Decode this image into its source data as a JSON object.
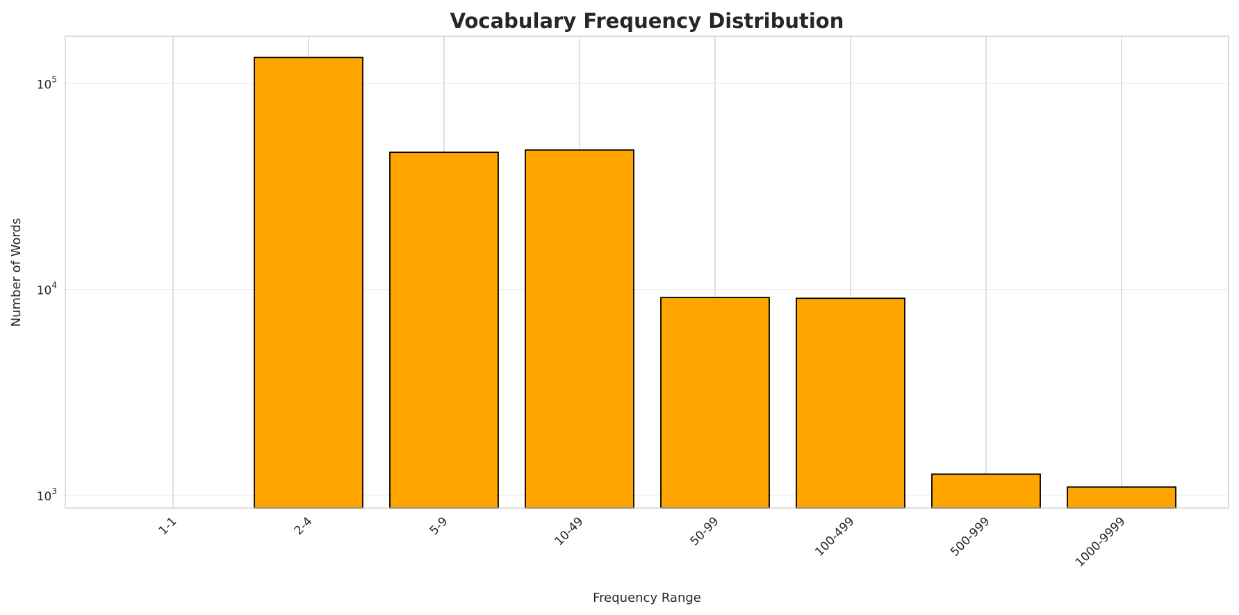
{
  "chart_data": {
    "type": "bar",
    "title": "Vocabulary Frequency Distribution",
    "xlabel": "Frequency Range",
    "ylabel": "Number of Words",
    "yscale": "log",
    "ylim": [
      870,
      170000
    ],
    "yticks": [
      1000,
      10000,
      100000
    ],
    "ytick_labels": [
      {
        "base": "10",
        "exp": "3"
      },
      {
        "base": "10",
        "exp": "4"
      },
      {
        "base": "10",
        "exp": "5"
      }
    ],
    "categories": [
      "1-1",
      "2-4",
      "5-9",
      "10-49",
      "50-99",
      "100-499",
      "500-999",
      "1000-9999"
    ],
    "values": [
      0,
      134000,
      46400,
      47600,
      9150,
      9070,
      1270,
      1100
    ],
    "bar_color": "#FFA500",
    "edge_color": "#000000",
    "grid": true,
    "legend": "none"
  }
}
